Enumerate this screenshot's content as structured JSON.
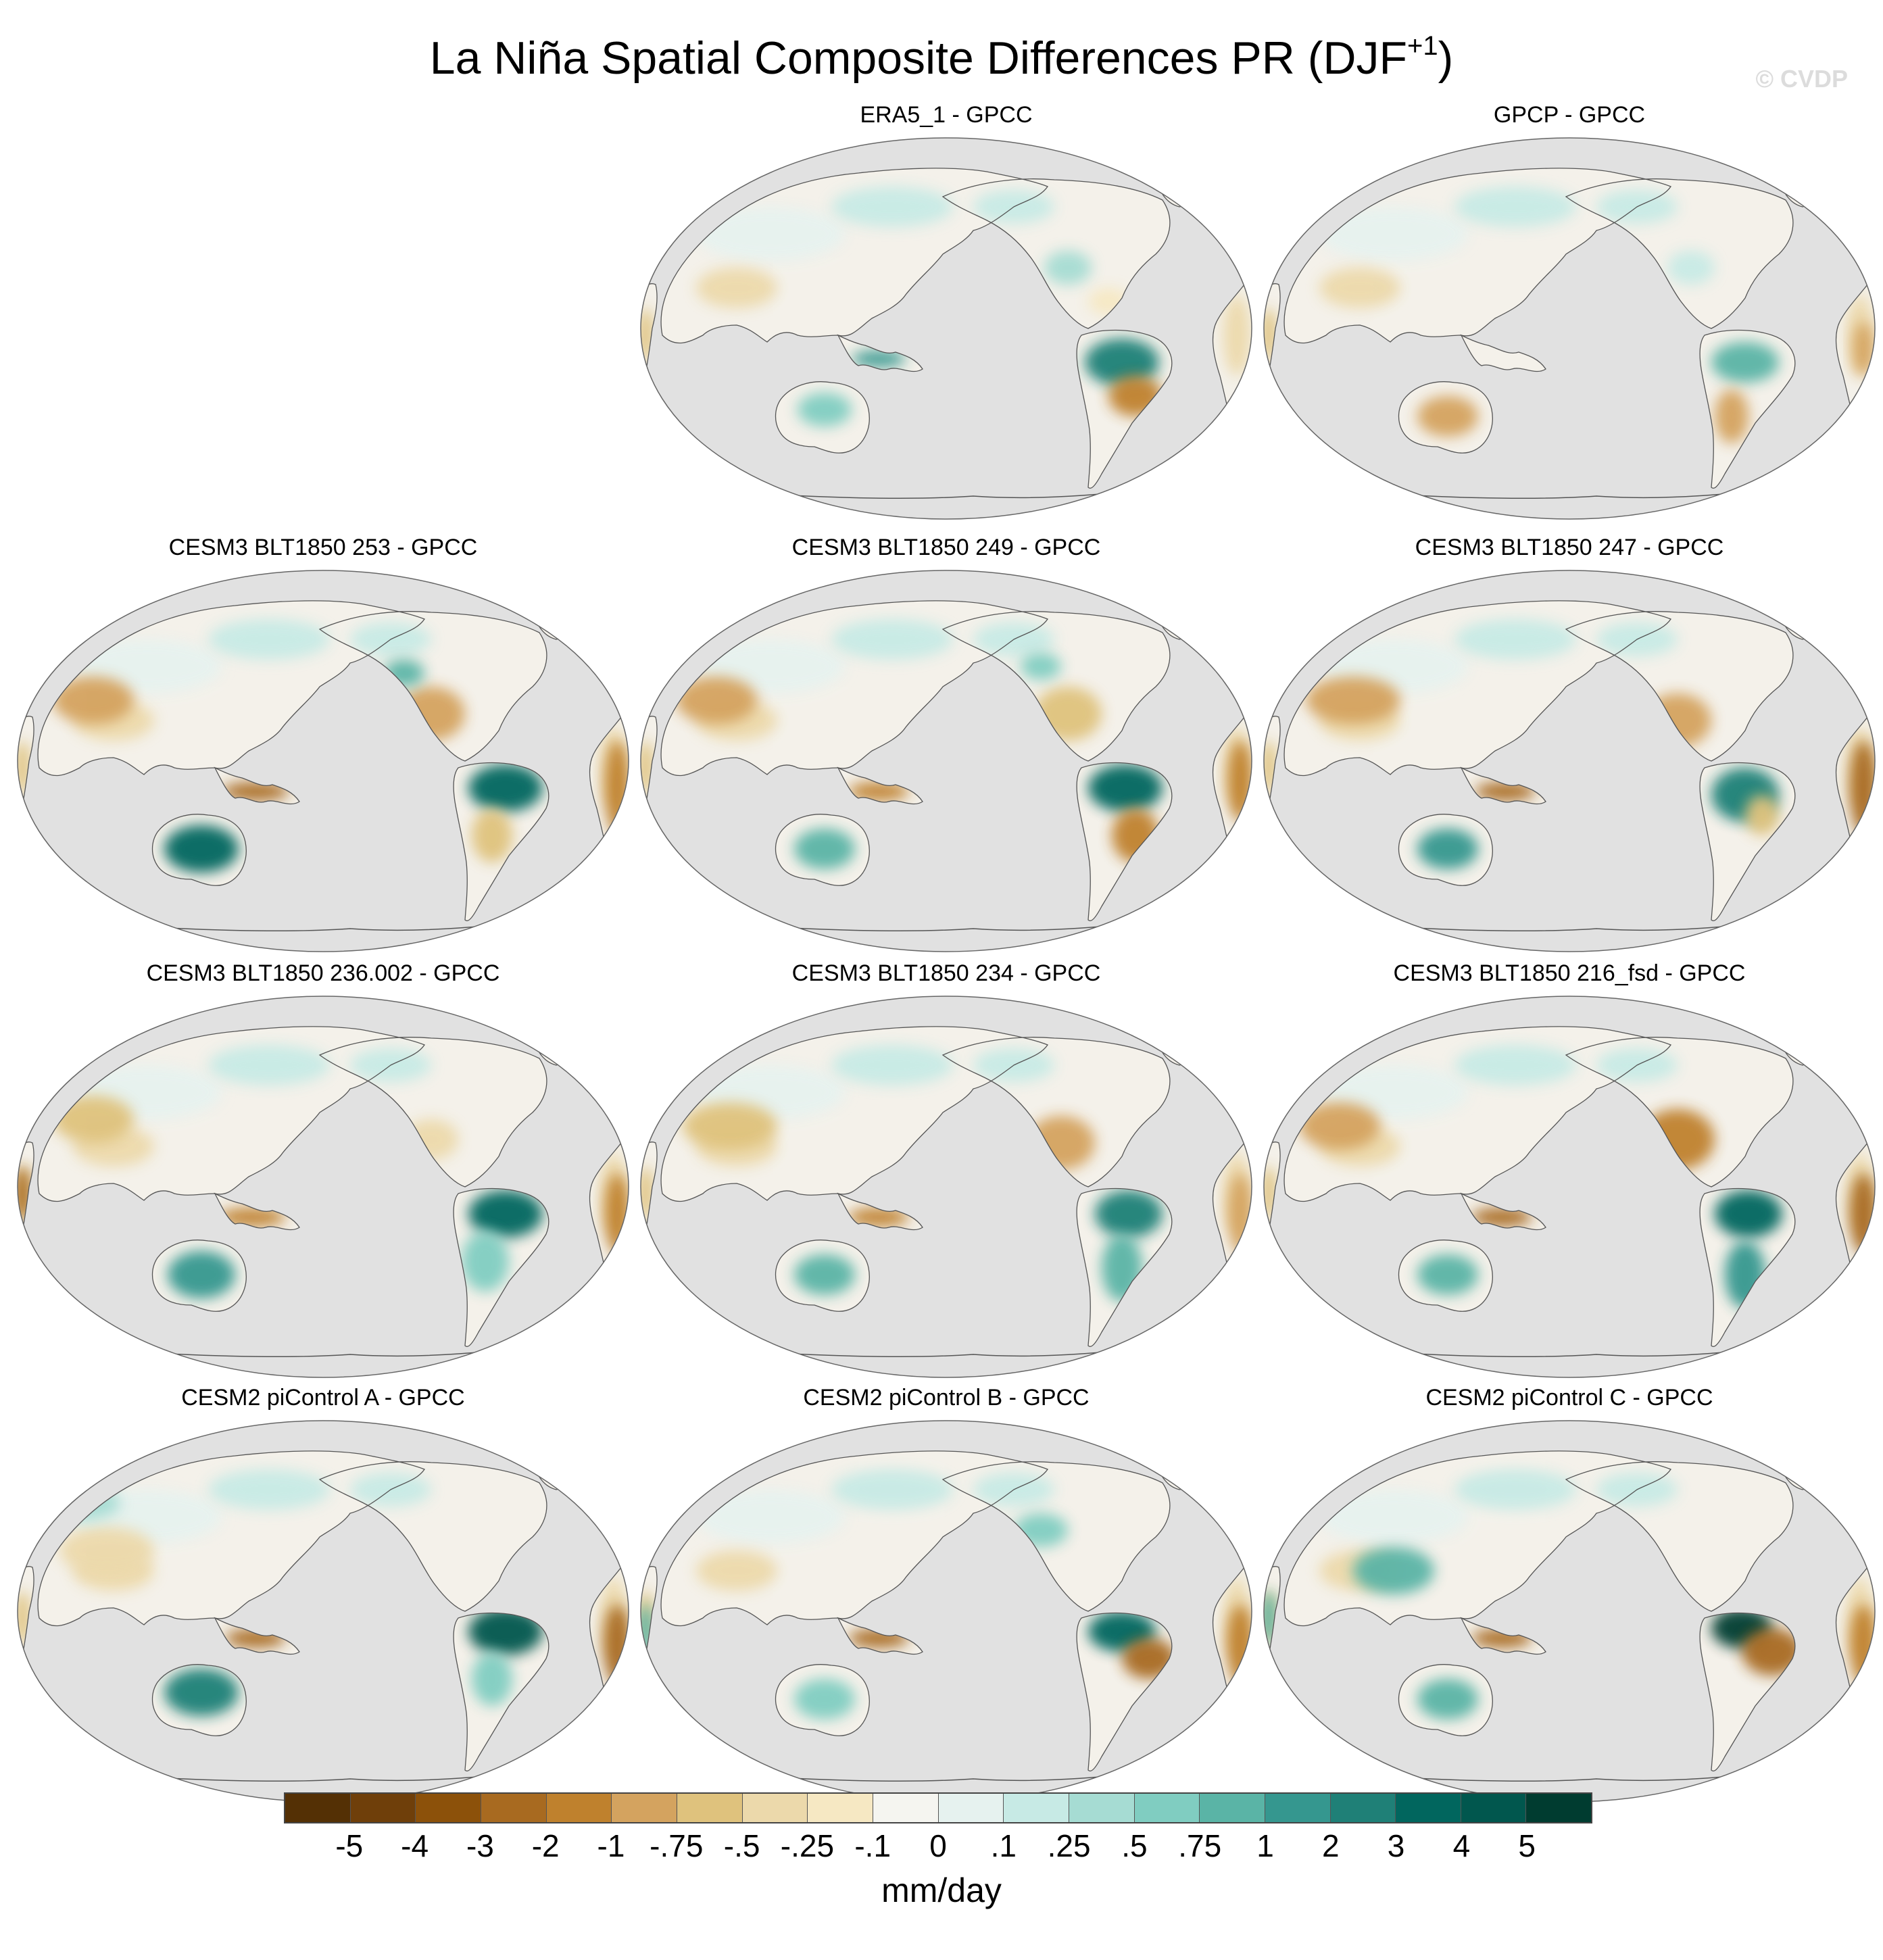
{
  "figure": {
    "title_main": "La Niña Spatial Composite Differences PR (DJF",
    "title_sup": "+1",
    "title_close": ")",
    "watermark": "© CVDP"
  },
  "panels": [
    {
      "id": "era5",
      "title": "ERA5_1 - GPCC",
      "pattern": "obs1"
    },
    {
      "id": "gpcp",
      "title": "GPCP - GPCC",
      "pattern": "obs2"
    },
    {
      "id": "blt253",
      "title": "CESM3 BLT1850 253 - GPCC",
      "pattern": "m1"
    },
    {
      "id": "blt249",
      "title": "CESM3 BLT1850 249 - GPCC",
      "pattern": "m2"
    },
    {
      "id": "blt247",
      "title": "CESM3 BLT1850 247 - GPCC",
      "pattern": "m3"
    },
    {
      "id": "blt236",
      "title": "CESM3 BLT1850 236.002 - GPCC",
      "pattern": "m4"
    },
    {
      "id": "blt234",
      "title": "CESM3 BLT1850 234 - GPCC",
      "pattern": "m5"
    },
    {
      "id": "blt216",
      "title": "CESM3 BLT1850 216_fsd - GPCC",
      "pattern": "m6"
    },
    {
      "id": "picA",
      "title": "CESM2 piControl A - GPCC",
      "pattern": "p1"
    },
    {
      "id": "picB",
      "title": "CESM2 piControl B - GPCC",
      "pattern": "p2"
    },
    {
      "id": "picC",
      "title": "CESM2 piControl C - GPCC",
      "pattern": "p3"
    }
  ],
  "colorbar": {
    "units": "mm/day",
    "labels": [
      "-5",
      "-4",
      "-3",
      "-2",
      "-1",
      "-.75",
      "-.5",
      "-.25",
      "-.1",
      "0",
      ".1",
      ".25",
      ".5",
      ".75",
      "1",
      "2",
      "3",
      "4",
      "5"
    ],
    "colors": [
      "#543005",
      "#6f3f0a",
      "#8c510a",
      "#a86a20",
      "#bf812d",
      "#d4a35f",
      "#dfc27d",
      "#ecd9ab",
      "#f6e8c3",
      "#f5f5f0",
      "#e6f2ef",
      "#c7eae5",
      "#a6dcd3",
      "#80cdc1",
      "#5ab4a6",
      "#35978f",
      "#1f8077",
      "#01665e",
      "#01574e",
      "#003c30"
    ]
  },
  "map_colors": {
    "ocean": "#e1e1e1",
    "land_neutral": "#f4f1ea",
    "coast": "#555555"
  }
}
